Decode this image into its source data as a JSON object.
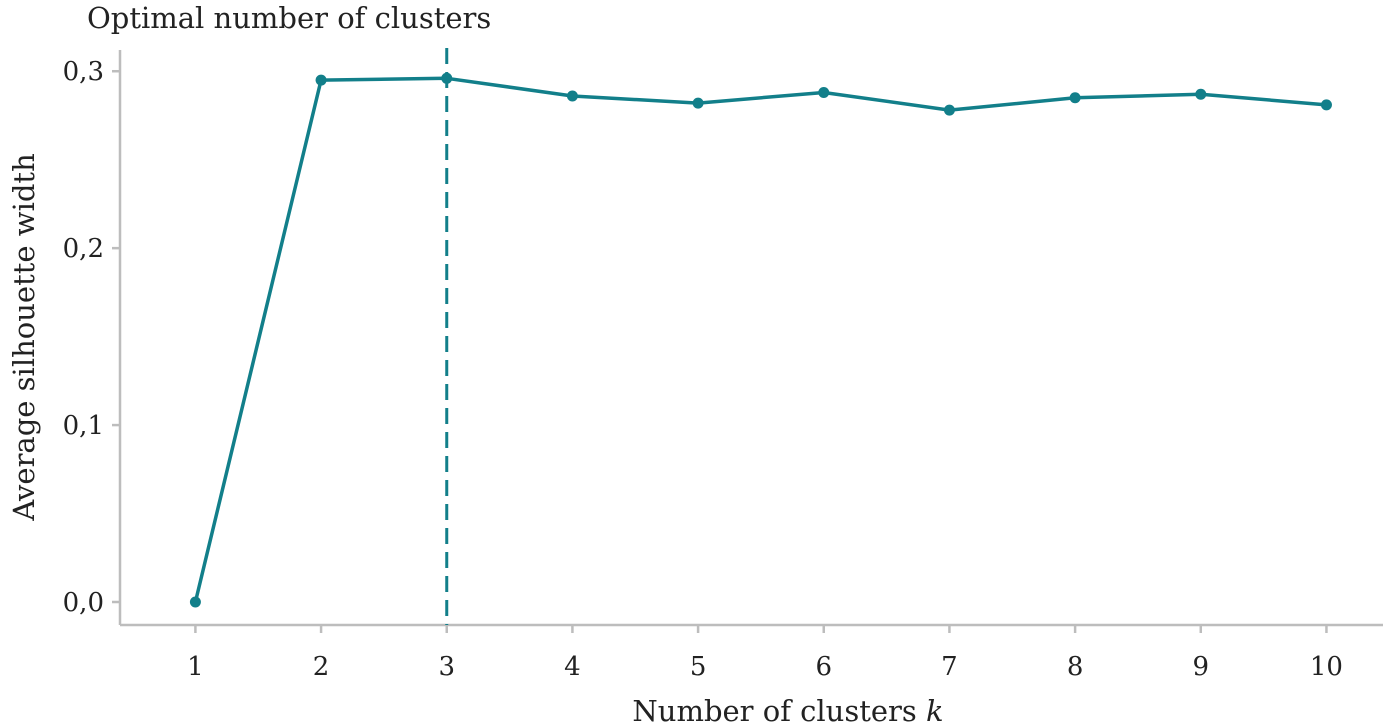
{
  "chart_data": {
    "type": "line",
    "title": "Optimal number of clusters",
    "xlabel": "Number of clusters",
    "xlabel_var": "k",
    "ylabel": "Average silhouette width",
    "x": [
      1,
      2,
      3,
      4,
      5,
      6,
      7,
      8,
      9,
      10
    ],
    "x_tick_labels": [
      "1",
      "2",
      "3",
      "4",
      "5",
      "6",
      "7",
      "8",
      "9",
      "10"
    ],
    "y_ticks": [
      0.0,
      0.1,
      0.2,
      0.3
    ],
    "y_tick_labels": [
      "0,0",
      "0,1",
      "0,2",
      "0,3"
    ],
    "series": [
      {
        "values": [
          0.0,
          0.295,
          0.296,
          0.286,
          0.282,
          0.288,
          0.278,
          0.285,
          0.287,
          0.281
        ]
      }
    ],
    "optimal_k": 3,
    "xlim": [
      0.4,
      10.45
    ],
    "ylim": [
      -0.013,
      0.312
    ],
    "grid": false,
    "color": "#127f8a"
  }
}
